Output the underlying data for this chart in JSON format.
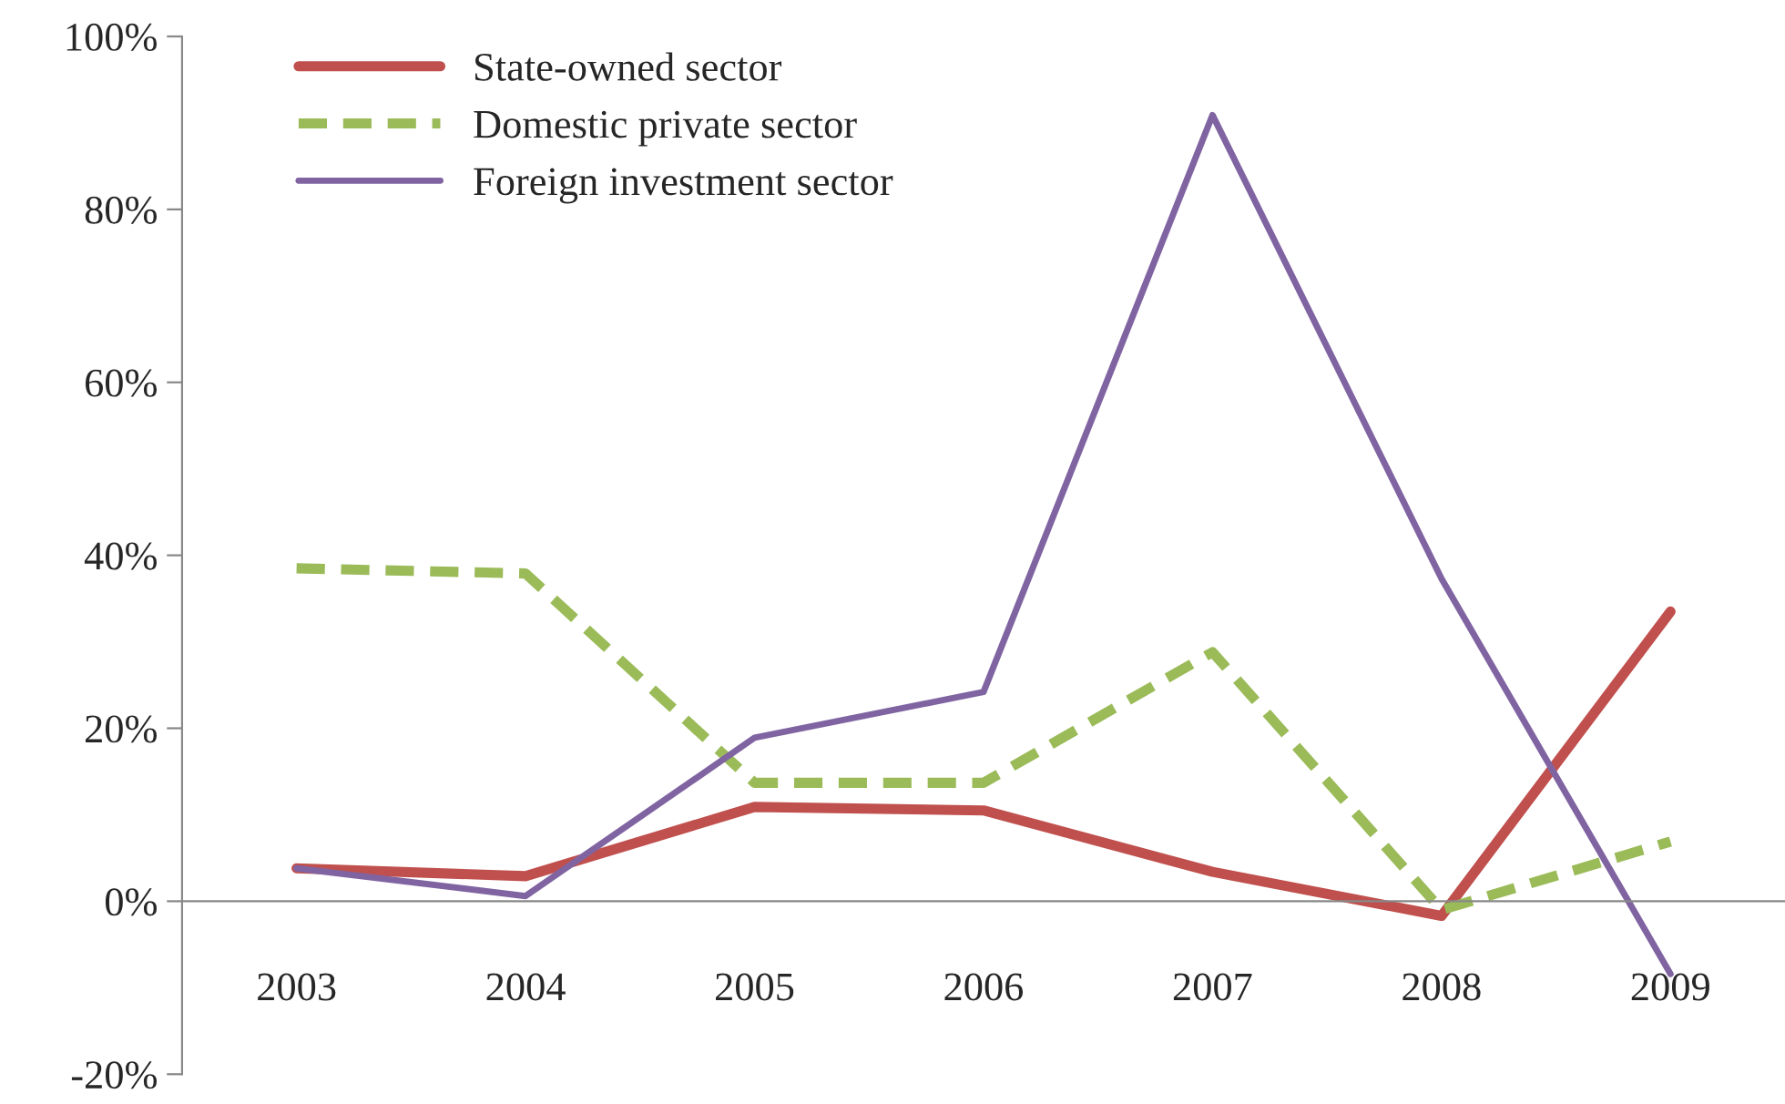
{
  "chart_data": {
    "type": "line",
    "categories": [
      "2003",
      "2004",
      "2005",
      "2006",
      "2007",
      "2008",
      "2009"
    ],
    "series": [
      {
        "name": "State-owned sector",
        "color": "#c0504d",
        "line_style": "solid",
        "values": [
          3.8,
          2.9,
          10.9,
          10.5,
          3.4,
          -1.7,
          33.5
        ]
      },
      {
        "name": "Domestic private sector",
        "color": "#9bbb59",
        "line_style": "dashed",
        "values": [
          38.5,
          37.9,
          13.7,
          13.7,
          28.8,
          -1.0,
          6.9
        ]
      },
      {
        "name": "Foreign investment sector",
        "color": "#8064a2",
        "line_style": "solid",
        "values": [
          3.8,
          0.6,
          18.9,
          24.2,
          90.9,
          37.3,
          -8.4
        ]
      }
    ],
    "ylim": [
      -20,
      100
    ],
    "yticks": [
      {
        "value": -20,
        "label": "-20%"
      },
      {
        "value": 0,
        "label": "0%"
      },
      {
        "value": 20,
        "label": "20%"
      },
      {
        "value": 40,
        "label": "40%"
      },
      {
        "value": 60,
        "label": "60%"
      },
      {
        "value": 80,
        "label": "80%"
      },
      {
        "value": 100,
        "label": "100%"
      }
    ],
    "legend": "top left",
    "marker": "none"
  }
}
